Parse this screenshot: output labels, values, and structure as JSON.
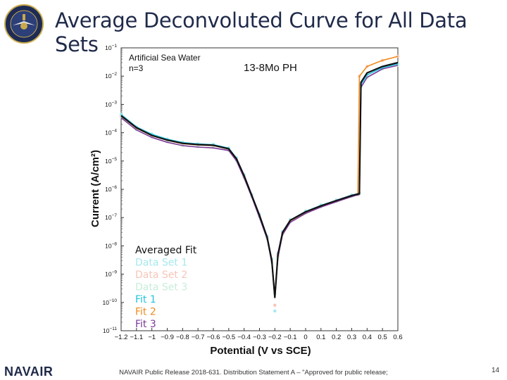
{
  "slide": {
    "title": "Average Deconvoluted Curve for All Data Sets",
    "logo_text": "NAVAIR",
    "footer": "NAVAIR Public Release 2018-631. Distribution Statement A – \"Approved for public release; distribution is unlimited\"",
    "page_number": "14"
  },
  "chart_data": {
    "type": "line",
    "title": "",
    "annotations": [
      "Artificial Sea Water",
      "n=3",
      "13-8Mo PH"
    ],
    "xlabel": "Potential (V vs SCE)",
    "ylabel": "Current (A/cm²)",
    "y_scale": "log",
    "xlim": [
      -1.2,
      0.6
    ],
    "ylim": [
      1e-11,
      0.1
    ],
    "x_ticks": [
      "−1.2",
      "−1.1",
      "−1",
      "−0.9",
      "−0.8",
      "−0.7",
      "−0.6",
      "−0.5",
      "−0.4",
      "−0.3",
      "−0.2",
      "−0.1",
      "0",
      "0.1",
      "0.2",
      "0.3",
      "0.4",
      "0.5",
      "0.6"
    ],
    "y_tick_exponents": [
      -11,
      -10,
      -9,
      -8,
      -7,
      -6,
      -5,
      -4,
      -3,
      -2,
      -1
    ],
    "y_tick_base": "10",
    "grid": false,
    "legend_position": "bottom-left",
    "series": [
      {
        "name": "Averaged Fit",
        "color": "#111111",
        "style": "line",
        "x": [
          -1.2,
          -1.1,
          -1.0,
          -0.9,
          -0.8,
          -0.7,
          -0.6,
          -0.5,
          -0.45,
          -0.4,
          -0.35,
          -0.3,
          -0.25,
          -0.22,
          -0.2,
          -0.18,
          -0.15,
          -0.1,
          0.0,
          0.1,
          0.2,
          0.3,
          0.35,
          0.36,
          0.4,
          0.5,
          0.6
        ],
        "y": [
          0.0004,
          0.00015,
          8e-05,
          5.5e-05,
          4.2e-05,
          3.8e-05,
          3.6e-05,
          2.7e-05,
          1.2e-05,
          3e-06,
          6e-07,
          1.2e-07,
          2e-08,
          3e-09,
          1.5e-10,
          5e-09,
          3e-08,
          8e-08,
          1.6e-07,
          2.6e-07,
          4e-07,
          6e-07,
          7e-07,
          0.006,
          0.013,
          0.022,
          0.03
        ]
      },
      {
        "name": "Data Set 1",
        "color": "#a6e8ee",
        "style": "dots",
        "x": [
          -1.2,
          -1.1,
          -1.0,
          -0.9,
          -0.8,
          -0.7,
          -0.6,
          -0.5,
          -0.45,
          -0.4,
          -0.35,
          -0.3,
          -0.25,
          -0.22,
          -0.2,
          -0.18,
          -0.15,
          -0.1,
          0.0,
          0.1,
          0.2,
          0.3,
          0.35,
          0.36,
          0.4,
          0.5,
          0.6
        ],
        "y": [
          0.00045,
          0.00016,
          9e-05,
          6e-05,
          4.6e-05,
          4.1e-05,
          3.9e-05,
          2.9e-05,
          1.3e-05,
          3.3e-06,
          6.5e-07,
          1.3e-07,
          2.2e-08,
          3.4e-09,
          5e-11,
          5.5e-09,
          3.2e-08,
          8.5e-08,
          1.7e-07,
          2.8e-07,
          4.2e-07,
          6.3e-07,
          7.5e-07,
          0.005,
          0.011,
          0.02,
          0.027
        ]
      },
      {
        "name": "Data Set 2",
        "color": "#f5c6b8",
        "style": "dots",
        "x": [
          -1.2,
          -1.1,
          -1.0,
          -0.9,
          -0.8,
          -0.7,
          -0.6,
          -0.5,
          -0.45,
          -0.4,
          -0.35,
          -0.3,
          -0.25,
          -0.22,
          -0.2,
          -0.18,
          -0.15,
          -0.1,
          0.0,
          0.1,
          0.2,
          0.3,
          0.34,
          0.35,
          0.4,
          0.5,
          0.6
        ],
        "y": [
          0.00038,
          0.00014,
          7.8e-05,
          5.3e-05,
          4e-05,
          3.6e-05,
          3.4e-05,
          2.6e-05,
          1.15e-05,
          2.8e-06,
          5.8e-07,
          1.1e-07,
          1.9e-08,
          2.8e-09,
          8e-11,
          4.5e-09,
          2.8e-08,
          7.5e-08,
          1.5e-07,
          2.5e-07,
          3.8e-07,
          5.8e-07,
          6.5e-07,
          0.01,
          0.022,
          0.036,
          0.05
        ]
      },
      {
        "name": "Data Set 3",
        "color": "#c8eed8",
        "style": "dots",
        "x": [
          -1.2,
          -1.1,
          -1.0,
          -0.9,
          -0.8,
          -0.7,
          -0.6,
          -0.5,
          -0.45,
          -0.4,
          -0.35,
          -0.3,
          -0.25,
          -0.22,
          -0.2,
          -0.18,
          -0.15,
          -0.1,
          0.0,
          0.1,
          0.2,
          0.3,
          0.35,
          0.36,
          0.4,
          0.5,
          0.6
        ],
        "y": [
          0.00035,
          0.00013,
          7e-05,
          4.8e-05,
          3.6e-05,
          3.2e-05,
          3e-05,
          2.4e-05,
          1.05e-05,
          2.6e-06,
          5.5e-07,
          1.05e-07,
          1.8e-08,
          2.6e-09,
          2e-10,
          4e-09,
          2.6e-08,
          7e-08,
          1.45e-07,
          2.4e-07,
          3.7e-07,
          5.6e-07,
          6.8e-07,
          0.004,
          0.009,
          0.018,
          0.024
        ]
      },
      {
        "name": "Fit 1",
        "color": "#22c4e0",
        "style": "line",
        "x": [
          -1.2,
          -1.1,
          -1.0,
          -0.9,
          -0.8,
          -0.7,
          -0.6,
          -0.5,
          -0.45,
          -0.4,
          -0.35,
          -0.3,
          -0.25,
          -0.22,
          -0.2,
          -0.18,
          -0.15,
          -0.1,
          0.0,
          0.1,
          0.2,
          0.3,
          0.35,
          0.36,
          0.4,
          0.5,
          0.6
        ],
        "y": [
          0.00044,
          0.00016,
          8.8e-05,
          5.9e-05,
          4.5e-05,
          4e-05,
          3.8e-05,
          2.85e-05,
          1.25e-05,
          3.1e-06,
          6.2e-07,
          1.25e-07,
          2.1e-08,
          3.2e-09,
          1.5e-10,
          5.2e-09,
          3.1e-08,
          8.2e-08,
          1.65e-07,
          2.7e-07,
          4.1e-07,
          6.2e-07,
          7.2e-07,
          0.005,
          0.011,
          0.02,
          0.027
        ]
      },
      {
        "name": "Fit 2",
        "color": "#f08a1e",
        "style": "line",
        "x": [
          -1.2,
          -1.1,
          -1.0,
          -0.9,
          -0.8,
          -0.7,
          -0.6,
          -0.5,
          -0.45,
          -0.4,
          -0.35,
          -0.3,
          -0.25,
          -0.22,
          -0.2,
          -0.18,
          -0.15,
          -0.1,
          0.0,
          0.1,
          0.2,
          0.3,
          0.34,
          0.35,
          0.4,
          0.5,
          0.6
        ],
        "y": [
          0.00039,
          0.000145,
          7.9e-05,
          5.4e-05,
          4.1e-05,
          3.7e-05,
          3.5e-05,
          2.65e-05,
          1.18e-05,
          2.9e-06,
          5.9e-07,
          1.15e-07,
          1.95e-08,
          2.9e-09,
          1.5e-10,
          4.6e-09,
          2.9e-08,
          7.7e-08,
          1.55e-07,
          2.55e-07,
          3.9e-07,
          5.9e-07,
          6.6e-07,
          0.01,
          0.022,
          0.036,
          0.05
        ]
      },
      {
        "name": "Fit 3",
        "color": "#7b3a96",
        "style": "line",
        "x": [
          -1.2,
          -1.1,
          -1.0,
          -0.9,
          -0.8,
          -0.7,
          -0.6,
          -0.5,
          -0.45,
          -0.4,
          -0.35,
          -0.3,
          -0.25,
          -0.22,
          -0.2,
          -0.18,
          -0.15,
          -0.1,
          0.0,
          0.1,
          0.2,
          0.3,
          0.35,
          0.36,
          0.4,
          0.5,
          0.6
        ],
        "y": [
          0.00034,
          0.000125,
          6.8e-05,
          4.6e-05,
          3.5e-05,
          3.1e-05,
          2.9e-05,
          2.35e-05,
          1.02e-05,
          2.5e-06,
          5.3e-07,
          1e-07,
          1.75e-08,
          2.5e-09,
          1.5e-10,
          3.9e-09,
          2.5e-08,
          6.8e-08,
          1.4e-07,
          2.35e-07,
          3.6e-07,
          5.5e-07,
          6.6e-07,
          0.004,
          0.009,
          0.018,
          0.024
        ]
      }
    ]
  }
}
